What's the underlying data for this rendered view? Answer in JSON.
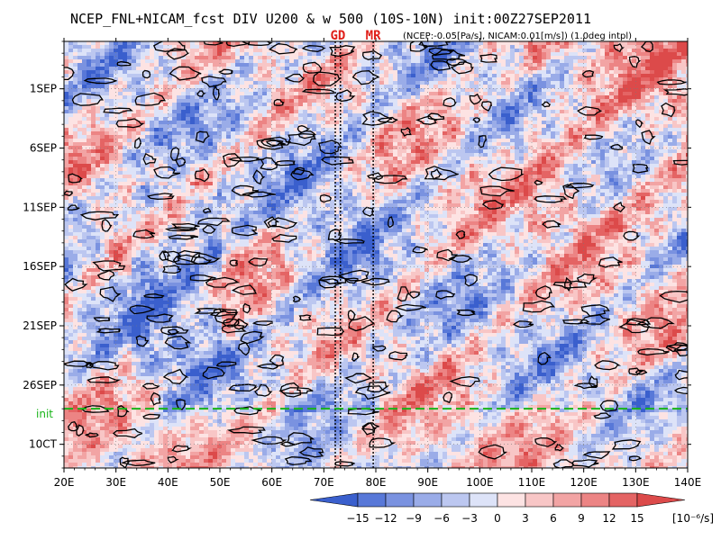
{
  "chart_data": {
    "type": "heatmap",
    "title": "NCEP_FNL+NICAM_fcst DIV U200 & w 500 (10S-10N) init:00Z27SEP2011",
    "subtitle": "(NCEP:-0.05[Pa/s], NICAM:0.01[m/s]) (1.0deg intpl)",
    "x_ticks": [
      "20E",
      "30E",
      "40E",
      "50E",
      "60E",
      "70E",
      "80E",
      "90E",
      "100E",
      "110E",
      "120E",
      "130E",
      "140E"
    ],
    "x_values": [
      20,
      30,
      40,
      50,
      60,
      70,
      80,
      90,
      100,
      110,
      120,
      130,
      140
    ],
    "xlim": [
      20,
      140
    ],
    "y_ticks": [
      "1SEP",
      "6SEP",
      "11SEP",
      "16SEP",
      "21SEP",
      "26SEP",
      "10CT"
    ],
    "y_day_offsets": [
      0,
      5,
      10,
      15,
      20,
      25,
      30
    ],
    "ylim_days": [
      -4,
      32
    ],
    "init_label": "init",
    "init_day_offset": 27,
    "markers": [
      {
        "label": "GD",
        "lon": 72.7
      },
      {
        "label": "MR",
        "lon": 79.5
      }
    ],
    "marker_lines_lon": [
      72.2,
      73.2,
      79.5
    ],
    "colorbar": {
      "ticks": [
        "−15",
        "−12",
        "−9",
        "−6",
        "−3",
        "0",
        "3",
        "6",
        "9",
        "12",
        "15"
      ],
      "unit": "[10⁻⁶/s]",
      "colors": [
        "#3a5fcd",
        "#5878d8",
        "#7a92e0",
        "#9aace8",
        "#bcc7f0",
        "#dde3f8",
        "#fde3e3",
        "#f8c6c6",
        "#f2a4a4",
        "#ec8484",
        "#e46464",
        "#dc4a4a"
      ]
    },
    "grid": true,
    "legend": "bottom"
  }
}
